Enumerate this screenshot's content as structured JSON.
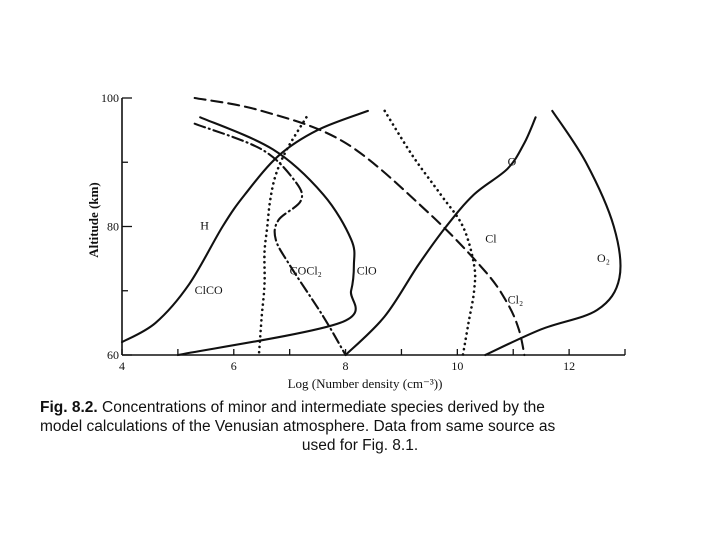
{
  "chart_data": {
    "type": "line",
    "title": "",
    "xlabel": "Log (Number density (cm⁻³))",
    "ylabel": "Altitude (km)",
    "xlim": [
      4,
      13
    ],
    "ylim": [
      60,
      100
    ],
    "x_ticks": [
      4,
      6,
      8,
      10,
      12
    ],
    "y_ticks": [
      60,
      80,
      100
    ],
    "grid": false,
    "legend": "none",
    "series": [
      {
        "name": "H",
        "style": "solid",
        "label_at": [
          5.4,
          79.5
        ],
        "x": [
          4.0,
          4.6,
          5.2,
          5.8,
          6.2,
          6.8,
          7.5,
          8.4
        ],
        "y": [
          62,
          65,
          71,
          80,
          85,
          91,
          95,
          98
        ]
      },
      {
        "name": "ClCO",
        "style": "dotted",
        "label_at": [
          5.3,
          69.5
        ],
        "x": [
          7.3,
          6.95,
          6.75,
          6.65,
          6.6,
          6.55,
          6.55,
          6.5,
          6.45
        ],
        "y": [
          97,
          92,
          88,
          84,
          80,
          76,
          71,
          66,
          60
        ]
      },
      {
        "name": "COCl₂",
        "style": "dashdot",
        "label_at": [
          7.0,
          72.5
        ],
        "x": [
          5.3,
          6.5,
          7.1,
          7.2,
          6.8,
          6.75,
          7.0,
          7.6,
          8.0
        ],
        "y": [
          96,
          92,
          87,
          84,
          81,
          78,
          74,
          66,
          60
        ]
      },
      {
        "name": "ClO",
        "style": "solid",
        "label_at": [
          8.2,
          72.5
        ],
        "x": [
          5.4,
          6.7,
          7.6,
          8.1,
          8.15,
          8.1,
          7.9,
          5.0
        ],
        "y": [
          97,
          92,
          85,
          78,
          74,
          70,
          65,
          60
        ]
      },
      {
        "name": "Cl₂",
        "style": "dashed",
        "label_at": [
          10.9,
          68.0
        ],
        "x": [
          5.3,
          6.5,
          8.0,
          9.5,
          10.5,
          10.9,
          11.1,
          11.2
        ],
        "y": [
          100,
          98,
          93,
          82,
          73,
          68,
          64,
          60
        ]
      },
      {
        "name": "Cl",
        "style": "dotted",
        "label_at": [
          10.5,
          77.5
        ],
        "x": [
          8.7,
          9.2,
          9.7,
          10.1,
          10.3,
          10.3,
          10.2,
          10.1
        ],
        "y": [
          98,
          91,
          85,
          80,
          74,
          70,
          65,
          60
        ]
      },
      {
        "name": "O",
        "style": "solid",
        "label_at": [
          10.9,
          89.5
        ],
        "x": [
          8.0,
          8.7,
          9.3,
          9.8,
          10.3,
          10.9,
          11.2,
          11.4
        ],
        "y": [
          60,
          66,
          74,
          80,
          85,
          89,
          93,
          97
        ]
      },
      {
        "name": "O₂",
        "style": "solid",
        "label_at": [
          12.5,
          74.5
        ],
        "x": [
          10.5,
          11.5,
          12.5,
          12.9,
          12.8,
          12.3,
          11.7
        ],
        "y": [
          60,
          64,
          67,
          72,
          80,
          90,
          98
        ]
      }
    ]
  },
  "caption": {
    "fig_label": "Fig. 8.2.",
    "line1": "Concentrations of minor and intermediate species derived by the",
    "line2": "model calculations of the Venusian atmosphere. Data from same source as",
    "line3": "used for Fig. 8.1."
  }
}
